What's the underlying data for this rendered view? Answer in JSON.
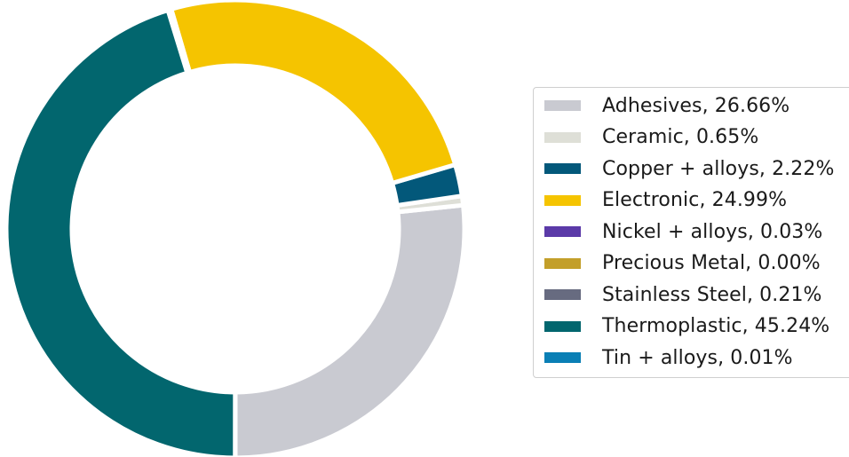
{
  "chart_data": {
    "type": "pie",
    "style": "donut",
    "start": "bottom, counterclockwise",
    "legend_position": "right",
    "slices": [
      {
        "label": "Adhesives, 26.66%",
        "value": 26.66,
        "color": "#c9cad1"
      },
      {
        "label": "Ceramic, 0.65%",
        "value": 0.65,
        "color": "#dedfd7"
      },
      {
        "label": "Copper + alloys, 2.22%",
        "value": 2.22,
        "color": "#03587a"
      },
      {
        "label": "Electronic, 24.99%",
        "value": 24.99,
        "color": "#f5c400"
      },
      {
        "label": "Nickel + alloys, 0.03%",
        "value": 0.03,
        "color": "#5b3aa8"
      },
      {
        "label": "Precious Metal, 0.00%",
        "value": 0.0,
        "color": "#c39f2a"
      },
      {
        "label": "Stainless Steel, 0.21%",
        "value": 0.21,
        "color": "#676b80"
      },
      {
        "label": "Thermoplastic, 45.24%",
        "value": 45.24,
        "color": "#02666e"
      },
      {
        "label": "Tin + alloys, 0.01%",
        "value": 0.01,
        "color": "#0a7fb5"
      }
    ]
  }
}
